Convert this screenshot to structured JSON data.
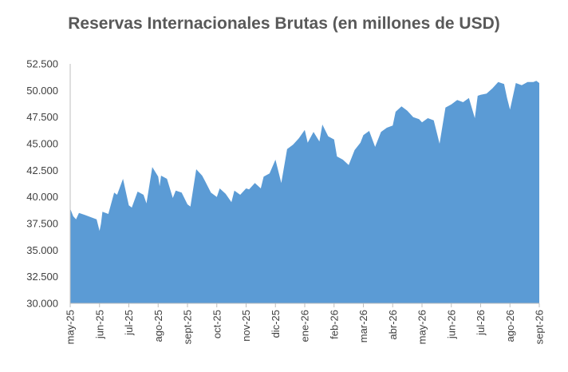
{
  "chart_data": {
    "type": "area",
    "title": "Reservas Internacionales Brutas (en millones de USD)",
    "xlabel": "",
    "ylabel": "",
    "ylim": [
      30000,
      52500
    ],
    "y_ticks": [
      "30.000",
      "32.500",
      "35.000",
      "37.500",
      "40.000",
      "42.500",
      "45.000",
      "47.500",
      "50.000",
      "52.500"
    ],
    "y_tick_values": [
      30000,
      32500,
      35000,
      37500,
      40000,
      42500,
      45000,
      47500,
      50000,
      52500
    ],
    "categories": [
      "may-25",
      "jun-25",
      "jul-25",
      "ago-25",
      "sept-25",
      "oct-25",
      "nov-25",
      "dic-25",
      "ene-26",
      "feb-26",
      "mar-26",
      "abr-26",
      "may-26",
      "jun-26",
      "jul-26",
      "ago-26",
      "sept-26"
    ],
    "grid": false,
    "legend": "none",
    "color": "#5b9bd5",
    "series": [
      {
        "x": [
          0,
          0.1,
          0.2,
          0.3,
          0.5,
          0.7,
          0.9,
          1.0,
          1.05,
          1.1,
          1.3,
          1.5,
          1.6,
          1.8,
          2.0,
          2.1,
          2.3,
          2.5,
          2.6,
          2.8,
          3.0,
          3.05,
          3.1,
          3.3,
          3.5,
          3.6,
          3.8,
          4.0,
          4.1,
          4.3,
          4.5,
          4.6,
          4.8,
          5.0,
          5.1,
          5.3,
          5.5,
          5.6,
          5.8,
          6.0,
          6.1,
          6.3,
          6.5,
          6.6,
          6.8,
          7.0,
          7.2,
          7.4,
          7.6,
          7.8,
          8.0,
          8.1,
          8.3,
          8.5,
          8.6,
          8.8,
          9.0,
          9.1,
          9.3,
          9.5,
          9.7,
          9.9,
          10.0,
          10.2,
          10.4,
          10.6,
          10.8,
          11.0,
          11.1,
          11.3,
          11.5,
          11.7,
          11.9,
          12.0,
          12.2,
          12.4,
          12.6,
          12.8,
          13.0,
          13.2,
          13.4,
          13.6,
          13.8,
          13.9,
          14.0,
          14.2,
          14.4,
          14.6,
          14.8,
          14.9,
          15.0,
          15.2,
          15.4,
          15.6,
          15.8,
          15.9,
          16.0
        ],
        "values": [
          38900,
          38200,
          37900,
          38500,
          38300,
          38100,
          37900,
          36800,
          37500,
          38600,
          38400,
          40400,
          40200,
          41700,
          39200,
          39000,
          40500,
          40200,
          39400,
          42800,
          41900,
          41000,
          42000,
          41700,
          39900,
          40600,
          40400,
          39300,
          39100,
          42600,
          42000,
          41500,
          40400,
          40000,
          40800,
          40300,
          39500,
          40600,
          40200,
          40800,
          40700,
          41300,
          40800,
          41900,
          42200,
          43500,
          41300,
          44500,
          44900,
          45500,
          46300,
          45100,
          46100,
          45200,
          46800,
          45700,
          45400,
          43800,
          43500,
          43000,
          44400,
          45100,
          45800,
          46200,
          44700,
          46100,
          46500,
          46700,
          48000,
          48500,
          48100,
          47500,
          47300,
          47000,
          47400,
          47200,
          45000,
          48400,
          48700,
          49100,
          48900,
          49300,
          47400,
          49500,
          49600,
          49700,
          50200,
          50800,
          50600,
          49300,
          48200,
          50700,
          50500,
          50800,
          50800,
          50900,
          50700
        ]
      }
    ]
  }
}
